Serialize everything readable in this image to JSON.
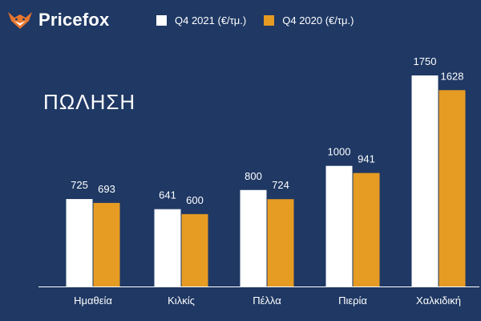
{
  "brand": {
    "name": "Pricefox",
    "icon": "fox-icon",
    "icon_color": "#e8772e"
  },
  "title": "ΠΩΛΗΣΗ",
  "colors": {
    "background": "#1f3864",
    "series_2021": "#ffffff",
    "series_2020": "#e69b23",
    "text": "#ffffff"
  },
  "chart_data": {
    "type": "bar",
    "categories": [
      "Ημαθεία",
      "Κιλκίς",
      "Πέλλα",
      "Πιερία",
      "Χαλκιδική"
    ],
    "series": [
      {
        "name": "Q4 2021 (€/τμ.)",
        "values": [
          725,
          641,
          800,
          1000,
          1750
        ]
      },
      {
        "name": "Q4 2020 (€/τμ.)",
        "values": [
          693,
          600,
          724,
          941,
          1628
        ]
      }
    ],
    "title": "ΠΩΛΗΣΗ",
    "xlabel": "",
    "ylabel": "",
    "ylim": [
      0,
      1750
    ],
    "grid": false,
    "legend": "top",
    "data_labels": true
  }
}
